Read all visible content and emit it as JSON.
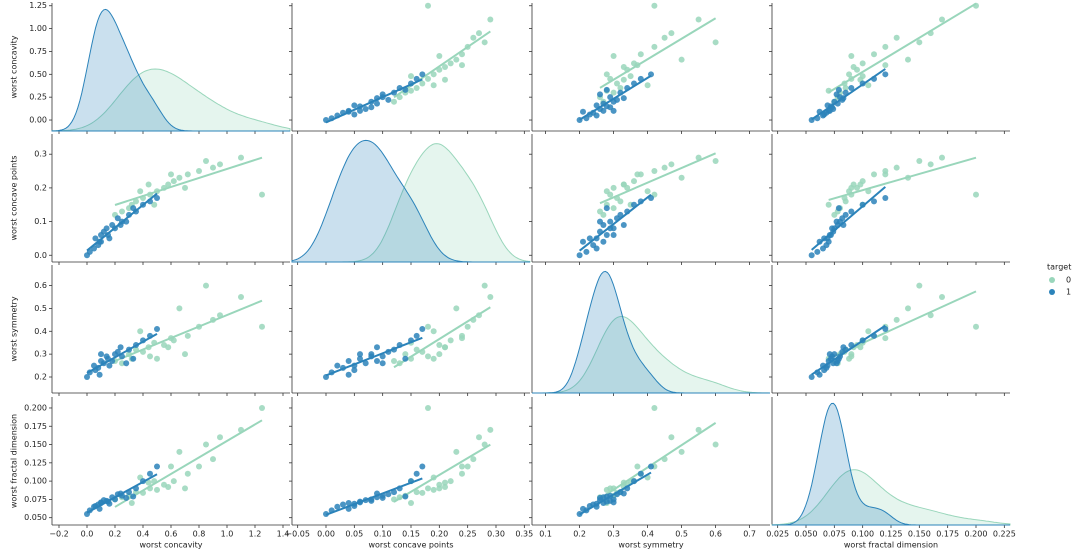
{
  "chart_data": {
    "type": "pairplot",
    "legend_title": "target",
    "variables": [
      {
        "name": "worst concavity",
        "xlim": [
          -0.25,
          1.45
        ],
        "ylim": [
          -0.12,
          1.28
        ],
        "xticks": [
          {
            "value": -0.2,
            "label": "−0.2"
          },
          {
            "value": 0,
            "label": "0.0"
          },
          0.2,
          0.4,
          0.6,
          0.8,
          {
            "value": 1,
            "label": "1.0"
          },
          1.2,
          1.4
        ],
        "yticks": [
          {
            "value": 0,
            "label": "0.00"
          },
          0.25,
          {
            "value": 0.5,
            "label": "0.50"
          },
          0.75,
          {
            "value": 1,
            "label": "1.00"
          },
          1.25
        ]
      },
      {
        "name": "worst concave points",
        "xlim": [
          -0.06,
          0.36
        ],
        "ylim": [
          -0.02,
          0.36
        ],
        "xticks": [
          {
            "value": -0.05,
            "label": "−0.05"
          },
          {
            "value": 0,
            "label": "0.00"
          },
          0.05,
          {
            "value": 0.1,
            "label": "0.10"
          },
          0.15,
          {
            "value": 0.2,
            "label": "0.20"
          },
          0.25,
          {
            "value": 0.3,
            "label": "0.30"
          },
          0.35
        ],
        "yticks": [
          {
            "value": 0,
            "label": "0.0"
          },
          0.1,
          0.2,
          0.3
        ]
      },
      {
        "name": "worst symmetry",
        "xlim": [
          0.06,
          0.76
        ],
        "ylim": [
          0.13,
          0.69
        ],
        "xticks": [
          0.1,
          0.2,
          0.3,
          0.4,
          0.5,
          0.6,
          0.7
        ],
        "yticks": [
          0.2,
          0.3,
          0.4,
          0.5,
          0.6
        ]
      },
      {
        "name": "worst fractal dimension",
        "xlim": [
          0.02,
          0.23
        ],
        "ylim": [
          0.04,
          0.215
        ],
        "xticks": [
          0.025,
          {
            "value": 0.05,
            "label": "0.050"
          },
          0.075,
          {
            "value": 0.1,
            "label": "0.100"
          },
          0.125,
          {
            "value": 0.15,
            "label": "0.150"
          },
          0.175,
          {
            "value": 0.2,
            "label": "0.200"
          },
          0.225
        ],
        "yticks": [
          {
            "value": 0.05,
            "label": "0.050"
          },
          0.075,
          {
            "value": 0.1,
            "label": "0.100"
          },
          0.125,
          {
            "value": 0.15,
            "label": "0.150"
          },
          0.175,
          {
            "value": 0.2,
            "label": "0.200"
          }
        ]
      }
    ],
    "series": [
      {
        "name": "0",
        "color": "#99d6bb",
        "samples": [
          [
            0.35,
            0.16,
            0.32,
            0.085
          ],
          [
            0.45,
            0.18,
            0.29,
            0.09
          ],
          [
            0.55,
            0.2,
            0.34,
            0.095
          ],
          [
            0.62,
            0.22,
            0.36,
            0.1
          ],
          [
            0.3,
            0.14,
            0.3,
            0.08
          ],
          [
            0.72,
            0.24,
            0.38,
            0.11
          ],
          [
            0.5,
            0.19,
            0.28,
            0.088
          ],
          [
            0.8,
            0.25,
            0.42,
            0.12
          ],
          [
            0.4,
            0.17,
            0.31,
            0.084
          ],
          [
            0.9,
            0.26,
            0.45,
            0.13
          ],
          [
            0.25,
            0.13,
            0.26,
            0.078
          ],
          [
            0.58,
            0.21,
            0.33,
            0.092
          ],
          [
            0.66,
            0.23,
            0.5,
            0.14
          ],
          [
            1.1,
            0.29,
            0.55,
            0.17
          ],
          [
            0.2,
            0.12,
            0.27,
            0.075
          ],
          [
            0.48,
            0.15,
            0.35,
            0.1
          ],
          [
            0.38,
            0.19,
            0.4,
            0.105
          ],
          [
            0.7,
            0.2,
            0.3,
            0.09
          ],
          [
            1.25,
            0.18,
            0.42,
            0.2
          ],
          [
            0.85,
            0.28,
            0.6,
            0.15
          ],
          [
            0.32,
            0.15,
            0.28,
            0.07
          ],
          [
            0.6,
            0.24,
            0.37,
            0.12
          ],
          [
            0.44,
            0.21,
            0.33,
            0.098
          ],
          [
            0.95,
            0.27,
            0.47,
            0.16
          ]
        ]
      },
      {
        "name": "1",
        "color": "#2b83ba",
        "samples": [
          [
            0.05,
            0.02,
            0.25,
            0.065
          ],
          [
            0.1,
            0.04,
            0.27,
            0.07
          ],
          [
            0.15,
            0.06,
            0.28,
            0.072
          ],
          [
            0.2,
            0.08,
            0.3,
            0.075
          ],
          [
            0.08,
            0.03,
            0.24,
            0.068
          ],
          [
            0.25,
            0.1,
            0.29,
            0.08
          ],
          [
            0.12,
            0.07,
            0.26,
            0.074
          ],
          [
            0.3,
            0.12,
            0.32,
            0.085
          ],
          [
            0.02,
            0.01,
            0.22,
            0.06
          ],
          [
            0.18,
            0.09,
            0.27,
            0.078
          ],
          [
            0.35,
            0.13,
            0.34,
            0.09
          ],
          [
            0.06,
            0.05,
            0.23,
            0.066
          ],
          [
            0.22,
            0.11,
            0.31,
            0.082
          ],
          [
            0.14,
            0.08,
            0.29,
            0.073
          ],
          [
            0.4,
            0.15,
            0.36,
            0.1
          ],
          [
            0,
            0,
            0.2,
            0.055
          ],
          [
            0.28,
            0.1,
            0.26,
            0.077
          ],
          [
            0.1,
            0.06,
            0.3,
            0.071
          ],
          [
            0.45,
            0.16,
            0.38,
            0.11
          ],
          [
            0.16,
            0.05,
            0.25,
            0.069
          ],
          [
            0.24,
            0.09,
            0.33,
            0.083
          ],
          [
            0.09,
            0.04,
            0.21,
            0.062
          ],
          [
            0.33,
            0.14,
            0.28,
            0.079
          ],
          [
            0.5,
            0.17,
            0.41,
            0.12
          ]
        ]
      }
    ]
  }
}
